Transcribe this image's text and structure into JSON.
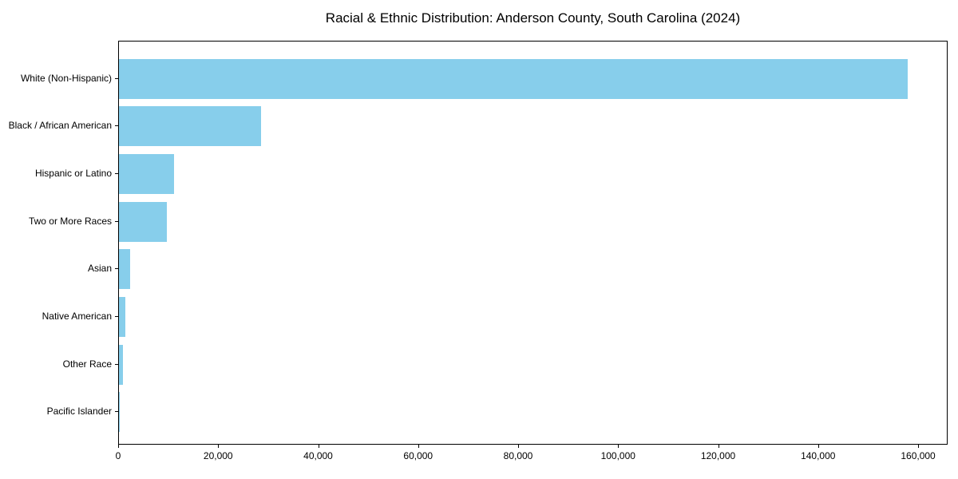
{
  "title": "Racial & Ethnic Distribution: Anderson County, South Carolina (2024)",
  "colors": {
    "bar": "#87CEEB",
    "background": "#ffffff",
    "axis": "#000000",
    "text": "#000000"
  },
  "chart_data": {
    "type": "bar",
    "orientation": "horizontal",
    "title": "Racial & Ethnic Distribution: Anderson County, South Carolina (2024)",
    "categories": [
      "White (Non-Hispanic)",
      "Black / African American",
      "Hispanic or Latino",
      "Two or More Races",
      "Asian",
      "Native American",
      "Other Race",
      "Pacific Islander"
    ],
    "values": [
      158000,
      28400,
      11000,
      9600,
      2200,
      1300,
      800,
      100
    ],
    "xlabel": "",
    "ylabel": "",
    "xlim": [
      0,
      165900
    ],
    "x_ticks": [
      0,
      20000,
      40000,
      60000,
      80000,
      100000,
      120000,
      140000,
      160000
    ],
    "x_tick_labels": [
      "0",
      "20,000",
      "40,000",
      "60,000",
      "80,000",
      "100,000",
      "120,000",
      "140,000",
      "160,000"
    ],
    "bar_color": "#87CEEB",
    "grid": false,
    "legend": null
  }
}
